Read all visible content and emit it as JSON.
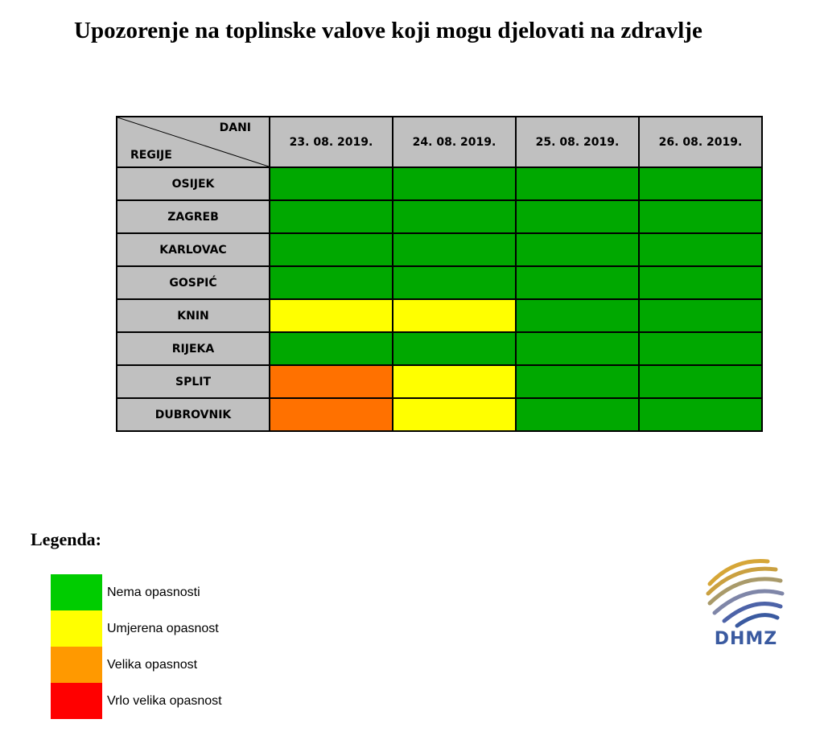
{
  "title": "Upozorenje na toplinske valove koji mogu djelovati na zdravlje",
  "table": {
    "corner_top": "DANI",
    "corner_bottom": "REGIJE",
    "dates": [
      "23. 08. 2019.",
      "24. 08. 2019.",
      "25. 08. 2019.",
      "26. 08. 2019."
    ],
    "rows": [
      {
        "region": "OSIJEK",
        "levels": [
          0,
          0,
          0,
          0
        ]
      },
      {
        "region": "ZAGREB",
        "levels": [
          0,
          0,
          0,
          0
        ]
      },
      {
        "region": "KARLOVAC",
        "levels": [
          0,
          0,
          0,
          0
        ]
      },
      {
        "region": "GOSPIĆ",
        "levels": [
          0,
          0,
          0,
          0
        ]
      },
      {
        "region": "KNIN",
        "levels": [
          1,
          1,
          0,
          0
        ]
      },
      {
        "region": "RIJEKA",
        "levels": [
          0,
          0,
          0,
          0
        ]
      },
      {
        "region": "SPLIT",
        "levels": [
          2,
          1,
          0,
          0
        ]
      },
      {
        "region": "DUBROVNIK",
        "levels": [
          2,
          1,
          0,
          0
        ]
      }
    ]
  },
  "legend": {
    "title": "Legenda:",
    "items": [
      {
        "label": "Nema opasnosti",
        "color": "#00cc00"
      },
      {
        "label": "Umjerena opasnost",
        "color": "#ffff00"
      },
      {
        "label": "Velika opasnost",
        "color": "#ff9900"
      },
      {
        "label": "Vrlo velika opasnost",
        "color": "#ff0000"
      }
    ]
  },
  "logo": {
    "text": "DHMZ",
    "icon": "dhmz-logo-icon"
  }
}
